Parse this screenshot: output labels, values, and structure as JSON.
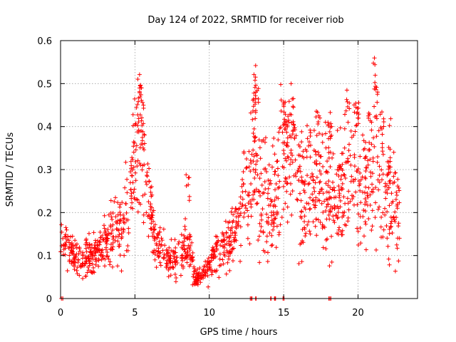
{
  "chart_data": {
    "type": "scatter",
    "title": "Day 124 of 2022, SRMTID for receiver riob",
    "xlabel": "GPS time / hours",
    "ylabel": "SRMTID / TECUs",
    "xlim": [
      0,
      24
    ],
    "ylim": [
      0,
      0.6
    ],
    "xticks": [
      0,
      5,
      10,
      15,
      20
    ],
    "xtick_labels": [
      "0",
      "5",
      "10",
      "15",
      "20"
    ],
    "yticks": [
      0,
      0.1,
      0.2,
      0.3,
      0.4,
      0.5,
      0.6
    ],
    "ytick_labels": [
      "0",
      "0.1",
      "0.2",
      "0.3",
      "0.4",
      "0.5",
      "0.6"
    ],
    "grid": true,
    "marker": "+",
    "color": "#ff0000",
    "trend": [
      [
        0.0,
        0.12
      ],
      [
        0.2,
        0.14
      ],
      [
        0.5,
        0.11
      ],
      [
        1.0,
        0.09
      ],
      [
        1.5,
        0.09
      ],
      [
        2.0,
        0.1
      ],
      [
        2.5,
        0.11
      ],
      [
        3.0,
        0.13
      ],
      [
        3.5,
        0.15
      ],
      [
        4.0,
        0.17
      ],
      [
        4.5,
        0.22
      ],
      [
        5.0,
        0.3
      ],
      [
        5.3,
        0.37
      ],
      [
        5.6,
        0.33
      ],
      [
        6.0,
        0.2
      ],
      [
        6.5,
        0.12
      ],
      [
        7.0,
        0.1
      ],
      [
        7.5,
        0.09
      ],
      [
        8.0,
        0.09
      ],
      [
        8.5,
        0.13
      ],
      [
        8.8,
        0.09
      ],
      [
        9.0,
        0.05
      ],
      [
        9.5,
        0.05
      ],
      [
        10.0,
        0.07
      ],
      [
        10.5,
        0.11
      ],
      [
        11.0,
        0.12
      ],
      [
        11.5,
        0.14
      ],
      [
        12.0,
        0.19
      ],
      [
        12.5,
        0.25
      ],
      [
        13.0,
        0.3
      ],
      [
        13.5,
        0.24
      ],
      [
        14.0,
        0.22
      ],
      [
        14.5,
        0.24
      ],
      [
        15.0,
        0.33
      ],
      [
        15.5,
        0.35
      ],
      [
        16.0,
        0.26
      ],
      [
        16.5,
        0.24
      ],
      [
        17.0,
        0.27
      ],
      [
        17.5,
        0.28
      ],
      [
        18.0,
        0.24
      ],
      [
        18.5,
        0.24
      ],
      [
        19.0,
        0.26
      ],
      [
        19.5,
        0.28
      ],
      [
        20.0,
        0.27
      ],
      [
        20.5,
        0.29
      ],
      [
        21.0,
        0.28
      ],
      [
        21.5,
        0.29
      ],
      [
        22.0,
        0.27
      ],
      [
        22.5,
        0.22
      ],
      [
        22.8,
        0.15
      ]
    ],
    "spikes": [
      [
        5.35,
        0.5
      ],
      [
        5.45,
        0.43
      ],
      [
        5.2,
        0.47
      ],
      [
        4.95,
        0.43
      ],
      [
        8.55,
        0.3
      ],
      [
        13.1,
        0.56
      ],
      [
        13.0,
        0.5
      ],
      [
        13.2,
        0.53
      ],
      [
        15.0,
        0.48
      ],
      [
        15.3,
        0.42
      ],
      [
        15.6,
        0.48
      ],
      [
        16.7,
        0.44
      ],
      [
        17.3,
        0.45
      ],
      [
        17.9,
        0.42
      ],
      [
        18.2,
        0.45
      ],
      [
        19.3,
        0.49
      ],
      [
        19.8,
        0.48
      ],
      [
        20.0,
        0.49
      ],
      [
        20.8,
        0.43
      ],
      [
        21.1,
        0.57
      ],
      [
        21.2,
        0.5
      ],
      [
        22.1,
        0.36
      ]
    ],
    "zero_markers": [
      0.1,
      12.8,
      13.1,
      14.2,
      14.4,
      15.0,
      18.1
    ]
  }
}
